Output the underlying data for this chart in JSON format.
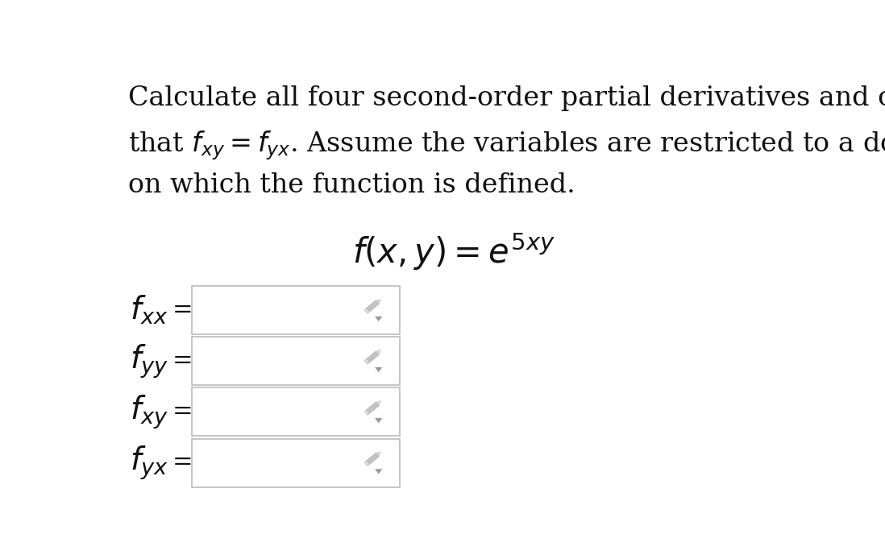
{
  "background_color": "#ffffff",
  "title_line1": "Calculate all four second-order partial derivatives and check",
  "title_line2_plain": "that ",
  "title_line2_math": "$f_{xy} = f_{yx}$",
  "title_line2_rest": ". Assume the variables are restricted to a domain",
  "title_line3": "on which the function is defined.",
  "function_label": "$f(x, y) = e^{5xy}$",
  "labels": [
    "$f_{xx}$",
    "$f_{yy}$",
    "$f_{xy}$",
    "$f_{yx}$"
  ],
  "text_color": "#111111",
  "box_edge_color": "#bbbbbb",
  "box_face_color": "#ffffff",
  "pencil_color": "#aaaaaa",
  "arrow_color": "#999999",
  "font_size_title": 24,
  "font_size_label": 28,
  "font_size_func": 28
}
